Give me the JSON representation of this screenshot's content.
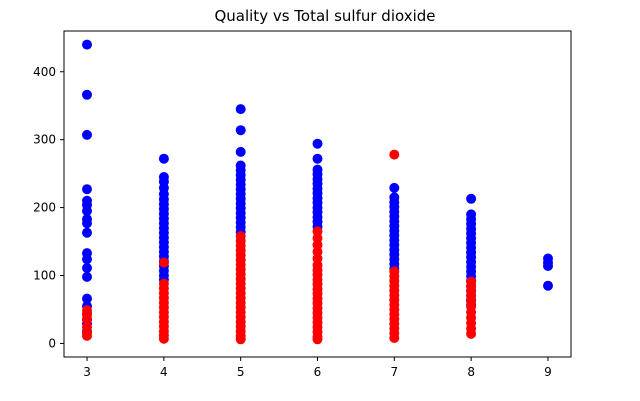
{
  "chart_data": {
    "type": "scatter",
    "title": "Quality vs Total sulfur dioxide",
    "xlabel": "",
    "ylabel": "",
    "xlim": [
      2.7,
      9.3
    ],
    "ylim": [
      -20,
      460
    ],
    "grid": false,
    "x_ticks": [
      3,
      4,
      5,
      6,
      7,
      8,
      9
    ],
    "y_ticks": [
      0,
      100,
      200,
      300,
      400
    ],
    "series": [
      {
        "color": "#0000ff",
        "points": [
          [
            3,
            440
          ],
          [
            3,
            366
          ],
          [
            3,
            307
          ],
          [
            3,
            227
          ],
          [
            3,
            210
          ],
          [
            3,
            204
          ],
          [
            3,
            195
          ],
          [
            3,
            183
          ],
          [
            3,
            177
          ],
          [
            3,
            163
          ],
          [
            3,
            133
          ],
          [
            3,
            124
          ],
          [
            3,
            111
          ],
          [
            3,
            98
          ],
          [
            3,
            66
          ],
          [
            3,
            55
          ],
          [
            3,
            44
          ],
          [
            3,
            36
          ],
          [
            3,
            29
          ],
          [
            3,
            18
          ],
          [
            4,
            272
          ],
          [
            4,
            245
          ],
          [
            4,
            238
          ],
          [
            4,
            229
          ],
          [
            4,
            220
          ],
          [
            4,
            212
          ],
          [
            4,
            205
          ],
          [
            4,
            198
          ],
          [
            4,
            191
          ],
          [
            4,
            184
          ],
          [
            4,
            177
          ],
          [
            4,
            170
          ],
          [
            4,
            163
          ],
          [
            4,
            156
          ],
          [
            4,
            149
          ],
          [
            4,
            142
          ],
          [
            4,
            135
          ],
          [
            4,
            128
          ],
          [
            4,
            121
          ],
          [
            4,
            114
          ],
          [
            4,
            107
          ],
          [
            4,
            100
          ],
          [
            4,
            94
          ],
          [
            5,
            345
          ],
          [
            5,
            314
          ],
          [
            5,
            282
          ],
          [
            5,
            262
          ],
          [
            5,
            255
          ],
          [
            5,
            248
          ],
          [
            5,
            241
          ],
          [
            5,
            234
          ],
          [
            5,
            227
          ],
          [
            5,
            220
          ],
          [
            5,
            213
          ],
          [
            5,
            206
          ],
          [
            5,
            199
          ],
          [
            5,
            192
          ],
          [
            5,
            185
          ],
          [
            5,
            178
          ],
          [
            5,
            171
          ],
          [
            5,
            164
          ],
          [
            6,
            294
          ],
          [
            6,
            272
          ],
          [
            6,
            256
          ],
          [
            6,
            249
          ],
          [
            6,
            242
          ],
          [
            6,
            235
          ],
          [
            6,
            228
          ],
          [
            6,
            221
          ],
          [
            6,
            214
          ],
          [
            6,
            207
          ],
          [
            6,
            200
          ],
          [
            6,
            193
          ],
          [
            6,
            186
          ],
          [
            6,
            179
          ],
          [
            6,
            172
          ],
          [
            7,
            229
          ],
          [
            7,
            215
          ],
          [
            7,
            208
          ],
          [
            7,
            201
          ],
          [
            7,
            194
          ],
          [
            7,
            187
          ],
          [
            7,
            180
          ],
          [
            7,
            173
          ],
          [
            7,
            166
          ],
          [
            7,
            159
          ],
          [
            7,
            152
          ],
          [
            7,
            145
          ],
          [
            7,
            138
          ],
          [
            7,
            131
          ],
          [
            7,
            124
          ],
          [
            7,
            117
          ],
          [
            7,
            110
          ],
          [
            8,
            213
          ],
          [
            8,
            190
          ],
          [
            8,
            183
          ],
          [
            8,
            176
          ],
          [
            8,
            169
          ],
          [
            8,
            162
          ],
          [
            8,
            155
          ],
          [
            8,
            148
          ],
          [
            8,
            141
          ],
          [
            8,
            134
          ],
          [
            8,
            127
          ],
          [
            8,
            120
          ],
          [
            8,
            113
          ],
          [
            8,
            106
          ],
          [
            8,
            99
          ],
          [
            8,
            92
          ],
          [
            8,
            85
          ],
          [
            8,
            78
          ],
          [
            8,
            71
          ],
          [
            8,
            64
          ],
          [
            8,
            57
          ],
          [
            9,
            125
          ],
          [
            9,
            119
          ],
          [
            9,
            114
          ],
          [
            9,
            85
          ]
        ]
      },
      {
        "color": "#ff0000",
        "points": [
          [
            3,
            49
          ],
          [
            3,
            42
          ],
          [
            3,
            35
          ],
          [
            3,
            24
          ],
          [
            3,
            16
          ],
          [
            3,
            11
          ],
          [
            4,
            119
          ],
          [
            4,
            88
          ],
          [
            4,
            81
          ],
          [
            4,
            74
          ],
          [
            4,
            67
          ],
          [
            4,
            60
          ],
          [
            4,
            53
          ],
          [
            4,
            46
          ],
          [
            4,
            39
          ],
          [
            4,
            32
          ],
          [
            4,
            25
          ],
          [
            4,
            18
          ],
          [
            4,
            12
          ],
          [
            4,
            7
          ],
          [
            5,
            158
          ],
          [
            5,
            151
          ],
          [
            5,
            144
          ],
          [
            5,
            137
          ],
          [
            5,
            130
          ],
          [
            5,
            123
          ],
          [
            5,
            116
          ],
          [
            5,
            109
          ],
          [
            5,
            102
          ],
          [
            5,
            95
          ],
          [
            5,
            88
          ],
          [
            5,
            81
          ],
          [
            5,
            74
          ],
          [
            5,
            67
          ],
          [
            5,
            60
          ],
          [
            5,
            53
          ],
          [
            5,
            46
          ],
          [
            5,
            39
          ],
          [
            5,
            32
          ],
          [
            5,
            25
          ],
          [
            5,
            18
          ],
          [
            5,
            11
          ],
          [
            5,
            6
          ],
          [
            6,
            165
          ],
          [
            6,
            155
          ],
          [
            6,
            145
          ],
          [
            6,
            135
          ],
          [
            6,
            125
          ],
          [
            6,
            115
          ],
          [
            6,
            108
          ],
          [
            6,
            101
          ],
          [
            6,
            94
          ],
          [
            6,
            87
          ],
          [
            6,
            80
          ],
          [
            6,
            73
          ],
          [
            6,
            66
          ],
          [
            6,
            59
          ],
          [
            6,
            52
          ],
          [
            6,
            45
          ],
          [
            6,
            38
          ],
          [
            6,
            31
          ],
          [
            6,
            24
          ],
          [
            6,
            17
          ],
          [
            6,
            10
          ],
          [
            6,
            6
          ],
          [
            7,
            278
          ],
          [
            7,
            106
          ],
          [
            7,
            99
          ],
          [
            7,
            92
          ],
          [
            7,
            85
          ],
          [
            7,
            78
          ],
          [
            7,
            71
          ],
          [
            7,
            64
          ],
          [
            7,
            57
          ],
          [
            7,
            50
          ],
          [
            7,
            43
          ],
          [
            7,
            36
          ],
          [
            7,
            29
          ],
          [
            7,
            22
          ],
          [
            7,
            15
          ],
          [
            7,
            8
          ],
          [
            8,
            91
          ],
          [
            8,
            84
          ],
          [
            8,
            77
          ],
          [
            8,
            70
          ],
          [
            8,
            62
          ],
          [
            8,
            54
          ],
          [
            8,
            46
          ],
          [
            8,
            38
          ],
          [
            8,
            30
          ],
          [
            8,
            22
          ],
          [
            8,
            14
          ]
        ]
      }
    ]
  }
}
